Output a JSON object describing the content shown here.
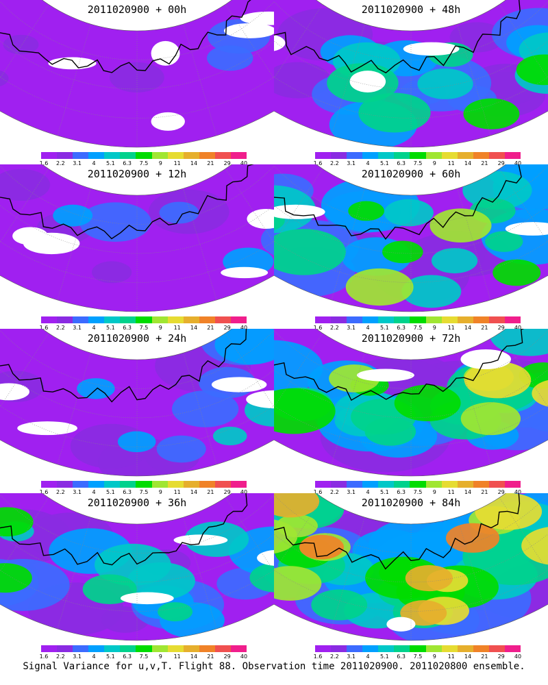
{
  "caption": "Signal Variance for u,v,T. Flight 88. Observation time 2011020900. 2011020800 ensemble.",
  "colorbar": {
    "labels": [
      "1.6",
      "2.2",
      "3.1",
      "4",
      "5.1",
      "6.3",
      "7.5",
      "9",
      "11",
      "14",
      "21",
      "29",
      "40"
    ],
    "colors": [
      "#a020f0",
      "#8a2be2",
      "#3c6bff",
      "#00a0ff",
      "#00c8c8",
      "#00d28c",
      "#00dc00",
      "#a0e632",
      "#e6dc32",
      "#e6af2d",
      "#f08228",
      "#f05050",
      "#f01e8c"
    ]
  },
  "panels": [
    {
      "title": "2011020900 + 00h",
      "intensity": 0.15
    },
    {
      "title": "2011020900 + 48h",
      "intensity": 0.55
    },
    {
      "title": "2011020900 + 12h",
      "intensity": 0.3
    },
    {
      "title": "2011020900 + 60h",
      "intensity": 0.65
    },
    {
      "title": "2011020900 + 24h",
      "intensity": 0.4
    },
    {
      "title": "2011020900 + 72h",
      "intensity": 0.75
    },
    {
      "title": "2011020900 + 36h",
      "intensity": 0.5
    },
    {
      "title": "2011020900 + 84h",
      "intensity": 0.9
    }
  ]
}
